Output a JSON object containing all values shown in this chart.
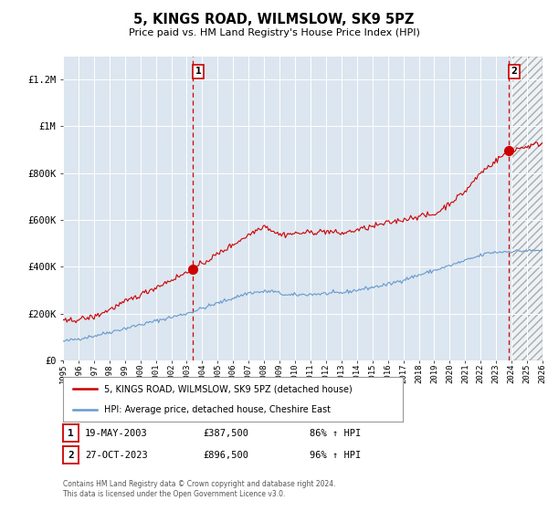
{
  "title": "5, KINGS ROAD, WILMSLOW, SK9 5PZ",
  "subtitle": "Price paid vs. HM Land Registry's House Price Index (HPI)",
  "footer": "Contains HM Land Registry data © Crown copyright and database right 2024.\nThis data is licensed under the Open Government Licence v3.0.",
  "legend_line1": "5, KINGS ROAD, WILMSLOW, SK9 5PZ (detached house)",
  "legend_line2": "HPI: Average price, detached house, Cheshire East",
  "sale1_date": "19-MAY-2003",
  "sale1_price": "£387,500",
  "sale1_hpi": "86% ↑ HPI",
  "sale2_date": "27-OCT-2023",
  "sale2_price": "£896,500",
  "sale2_hpi": "96% ↑ HPI",
  "property_color": "#cc0000",
  "hpi_color": "#6699cc",
  "dashed_line_color": "#cc0000",
  "background_color": "#ffffff",
  "plot_bg_color": "#dce6f0",
  "grid_color": "#ffffff",
  "ylim": [
    0,
    1300000
  ],
  "yticks": [
    0,
    200000,
    400000,
    600000,
    800000,
    1000000,
    1200000
  ],
  "ytick_labels": [
    "£0",
    "£200K",
    "£400K",
    "£600K",
    "£800K",
    "£1M",
    "£1.2M"
  ],
  "sale1_x": 2003.38,
  "sale1_y": 387500,
  "sale2_x": 2023.82,
  "sale2_y": 896500,
  "xmin": 1995,
  "xmax": 2026,
  "hatch_start": 2024.0
}
